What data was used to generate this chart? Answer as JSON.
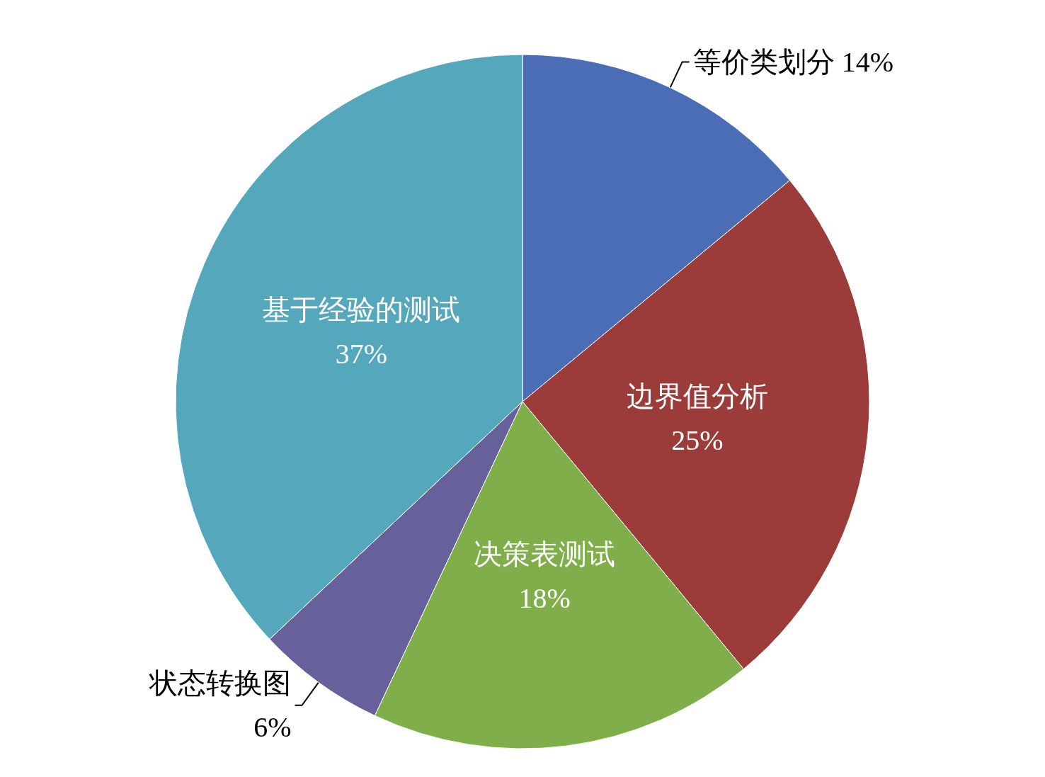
{
  "chart_data": {
    "type": "pie",
    "categories": [
      "等价类划分",
      "边界值分析",
      "决策表测试",
      "状态转换图",
      "基于经验的测试"
    ],
    "values": [
      14,
      25,
      18,
      6,
      37
    ],
    "value_labels": [
      "14%",
      "25%",
      "18%",
      "6%",
      "37%"
    ],
    "colors": [
      "#4a6db5",
      "#9b3c3a",
      "#7fae4b",
      "#66619a",
      "#55a8bc"
    ],
    "legend": false
  }
}
